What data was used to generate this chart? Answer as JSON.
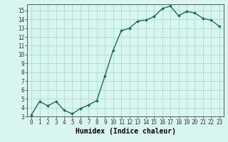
{
  "x": [
    0,
    1,
    2,
    3,
    4,
    5,
    6,
    7,
    8,
    9,
    10,
    11,
    12,
    13,
    14,
    15,
    16,
    17,
    18,
    19,
    20,
    21,
    22,
    23
  ],
  "y": [
    3.2,
    4.7,
    4.2,
    4.7,
    3.7,
    3.3,
    3.9,
    4.3,
    4.8,
    7.6,
    10.5,
    12.7,
    13.0,
    13.8,
    13.9,
    14.3,
    15.2,
    15.5,
    14.4,
    14.9,
    14.7,
    14.1,
    13.9,
    13.2
  ],
  "line_color": "#1a6b5a",
  "marker": "D",
  "marker_size": 2.0,
  "bg_color": "#d9f5f0",
  "grid_color": "#a0d8cf",
  "xlabel": "Humidex (Indice chaleur)",
  "xlim": [
    -0.5,
    23.5
  ],
  "ylim": [
    3,
    15.7
  ],
  "yticks": [
    3,
    4,
    5,
    6,
    7,
    8,
    9,
    10,
    11,
    12,
    13,
    14,
    15
  ],
  "xticks": [
    0,
    1,
    2,
    3,
    4,
    5,
    6,
    7,
    8,
    9,
    10,
    11,
    12,
    13,
    14,
    15,
    16,
    17,
    18,
    19,
    20,
    21,
    22,
    23
  ],
  "tick_fontsize": 5.5,
  "xlabel_fontsize": 7.0,
  "linewidth": 1.0
}
